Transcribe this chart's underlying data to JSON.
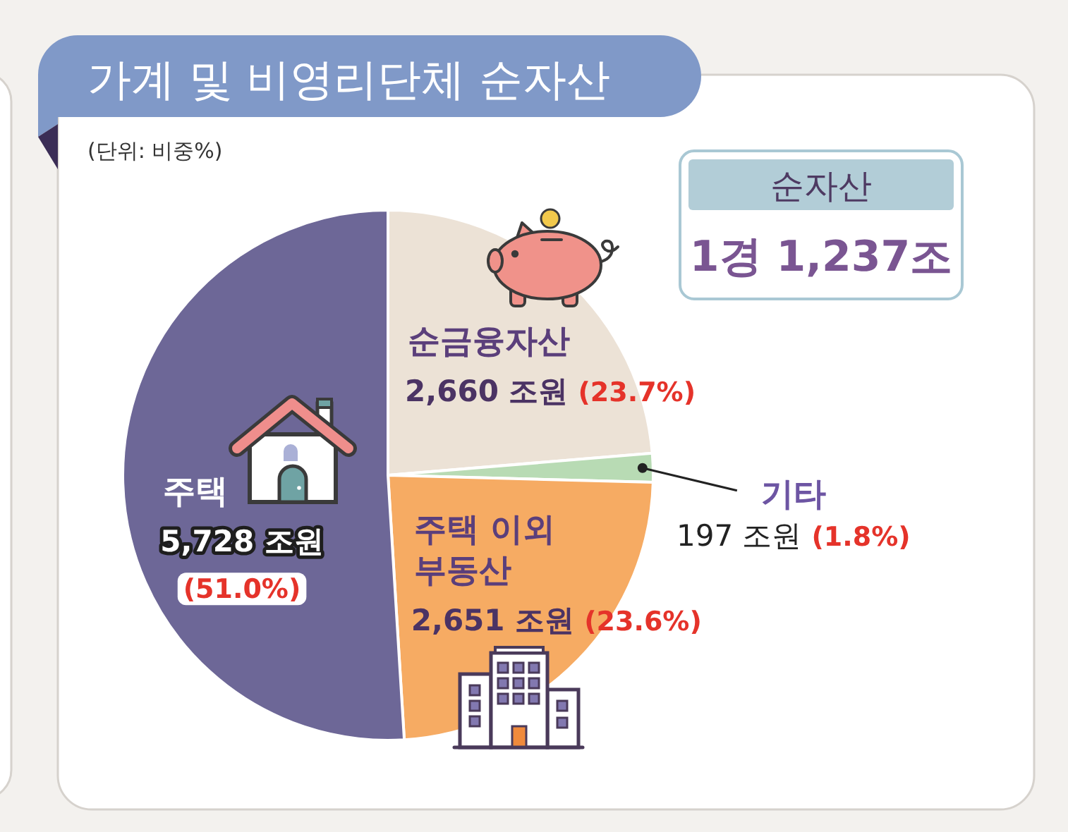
{
  "chart_data": {
    "type": "pie",
    "title": "가계 및 비영리단체 순자산",
    "subtitle": "(단위: 비중%)",
    "categories": [
      "순금융자산",
      "기타",
      "주택 이외 부동산",
      "주택"
    ],
    "values": [
      2660,
      197,
      2651,
      5728
    ],
    "colors": [
      "#ece2d6",
      "#b8dbb4",
      "#f6ab63",
      "#6d6797"
    ],
    "value_labels": [
      "2,660 조원 (23.7%)",
      "197 조원 (1.8%)",
      "2,651 조원 (23.6%)",
      "5,728 조원 (51.0%)"
    ],
    "annotations": [
      "순자산",
      "1경 1,237조"
    ]
  }
}
